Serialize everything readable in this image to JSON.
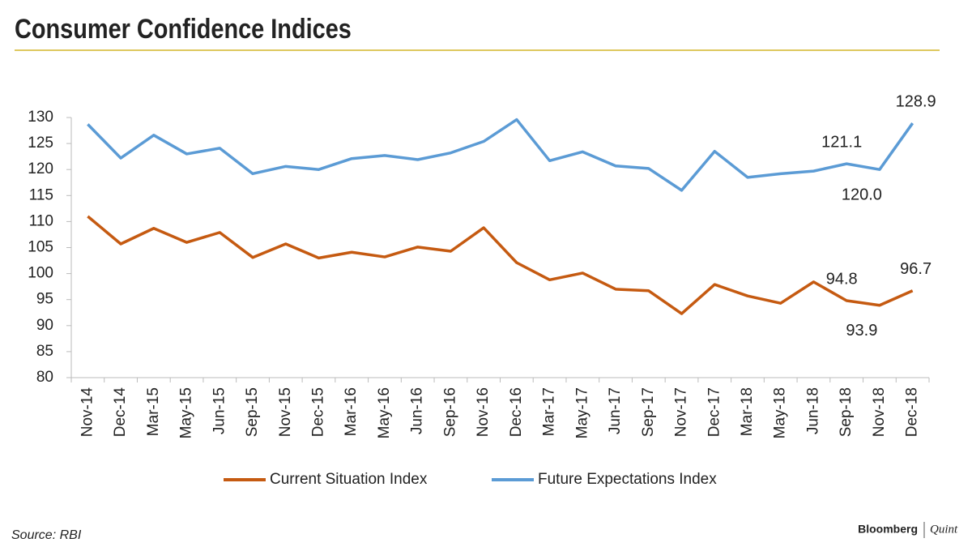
{
  "chart_data": {
    "type": "line",
    "title": "Consumer Confidence Indices",
    "source": "Source: RBI",
    "logo": [
      "Bloomberg",
      "Quint"
    ],
    "categories": [
      "Nov-14",
      "Dec-14",
      "Mar-15",
      "May-15",
      "Jun-15",
      "Sep-15",
      "Nov-15",
      "Dec-15",
      "Mar-16",
      "May-16",
      "Jun-16",
      "Sep-16",
      "Nov-16",
      "Dec-16",
      "Mar-17",
      "May-17",
      "Jun-17",
      "Sep-17",
      "Nov-17",
      "Dec-17",
      "Mar-18",
      "May-18",
      "Jun-18",
      "Sep-18",
      "Nov-18",
      "Dec-18"
    ],
    "series": [
      {
        "name": "Current Situation Index",
        "color": "#c55a11",
        "values": [
          111.0,
          105.7,
          108.7,
          106.0,
          107.9,
          103.1,
          105.7,
          103.0,
          104.1,
          103.2,
          105.1,
          104.3,
          108.8,
          102.1,
          98.8,
          100.1,
          97.0,
          96.7,
          92.3,
          97.9,
          95.7,
          94.3,
          98.4,
          94.8,
          93.9,
          96.7
        ],
        "value_labels": [
          null,
          null,
          null,
          null,
          null,
          null,
          null,
          null,
          null,
          null,
          null,
          null,
          null,
          null,
          null,
          null,
          null,
          null,
          null,
          null,
          null,
          null,
          null,
          "94.8",
          "93.9",
          "96.7"
        ]
      },
      {
        "name": "Future Expectations Index",
        "color": "#5b9bd5",
        "values": [
          128.7,
          122.2,
          126.6,
          123.0,
          124.1,
          119.2,
          120.6,
          120.0,
          122.1,
          122.7,
          121.9,
          123.2,
          125.4,
          129.6,
          121.7,
          123.4,
          120.7,
          120.2,
          116.0,
          123.5,
          118.5,
          119.2,
          119.7,
          121.1,
          120.0,
          128.9
        ],
        "value_labels": [
          null,
          null,
          null,
          null,
          null,
          null,
          null,
          null,
          null,
          null,
          null,
          null,
          null,
          null,
          null,
          null,
          null,
          null,
          null,
          null,
          null,
          null,
          null,
          "121.1",
          "120.0",
          "128.9"
        ]
      }
    ],
    "ylim": [
      80,
      130
    ],
    "yticks": [
      80,
      85,
      90,
      95,
      100,
      105,
      110,
      115,
      120,
      125,
      130
    ],
    "grid": false,
    "legend": "bottom"
  }
}
